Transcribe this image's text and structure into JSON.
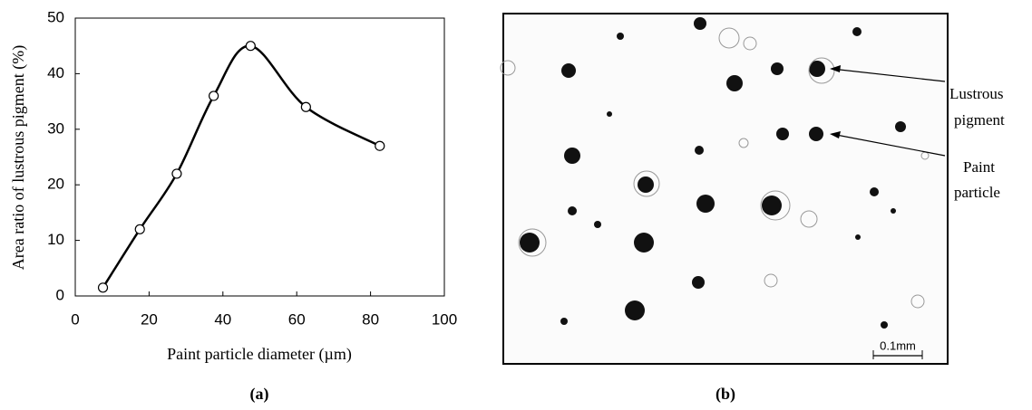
{
  "chart_data": {
    "type": "line",
    "panel_label": "(a)",
    "xlabel": "Paint particle diameter (µm)",
    "ylabel": "Area ratio of lustrous pigment (%)",
    "x": [
      7.5,
      17.5,
      27.5,
      37.5,
      47.5,
      62.5,
      82.5
    ],
    "values": [
      1.5,
      12,
      22,
      36,
      45,
      34,
      27
    ],
    "color": "#000000",
    "xlim": [
      0,
      100
    ],
    "xticks": [
      0,
      20,
      40,
      60,
      80,
      100
    ],
    "ylim": [
      0,
      50
    ],
    "yticks": [
      0,
      10,
      20,
      30,
      40,
      50
    ]
  },
  "image": {
    "panel_label": "(b)",
    "annotations": [
      [
        "Lustrous",
        "pigment"
      ],
      [
        "Paint",
        "particle"
      ]
    ],
    "scale_label": "0.1mm"
  }
}
